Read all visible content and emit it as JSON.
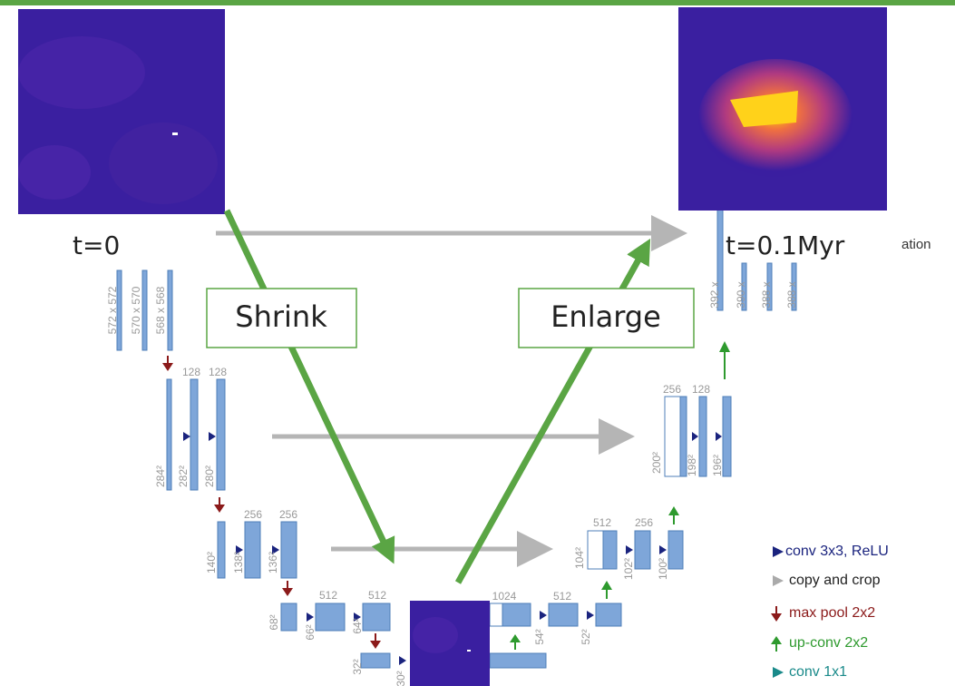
{
  "labels": {
    "t_start": "t=0",
    "t_end": "t=0.1Myr",
    "shrink": "Shrink",
    "enlarge": "Enlarge",
    "output_fragment": "ation"
  },
  "unet": {
    "channels": [
      "128",
      "128",
      "256",
      "256",
      "512",
      "512",
      "1024",
      "512",
      "512",
      "256",
      "256",
      "128"
    ],
    "sizes": [
      "572 x 572",
      "570 x 570",
      "568 x 568",
      "284²",
      "282²",
      "280²",
      "140²",
      "138²",
      "136²",
      "68²",
      "66²",
      "64²",
      "32²",
      "30²",
      "54²",
      "52²",
      "104²",
      "102²",
      "100²",
      "200²",
      "198²",
      "196²",
      "392 x",
      "390 x",
      "388 x",
      "388 x"
    ]
  },
  "legend": [
    "conv 3x3, ReLU",
    "copy and crop",
    "max pool 2x2",
    "up-conv 2x2",
    "conv 1x1"
  ]
}
